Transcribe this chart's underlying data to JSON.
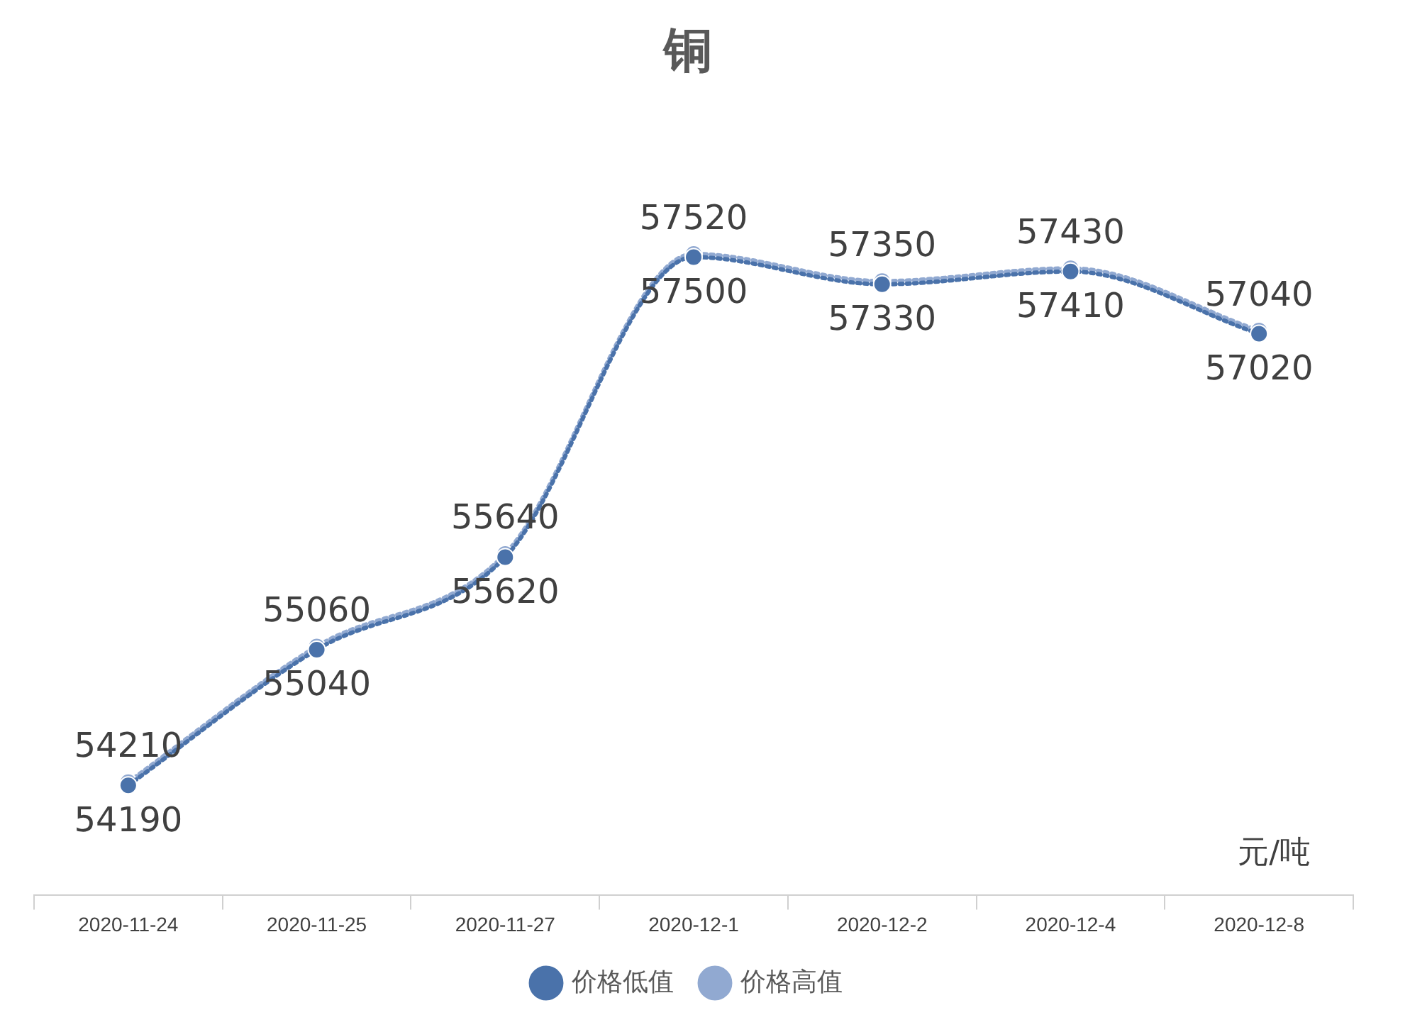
{
  "chart_data": {
    "type": "line",
    "title": "铜",
    "categories": [
      "2020-11-24",
      "2020-11-25",
      "2020-11-27",
      "2020-12-1",
      "2020-12-2",
      "2020-12-4",
      "2020-12-8"
    ],
    "series": [
      {
        "name": "价格低值",
        "color": "#4a72aa",
        "values": [
          54190,
          55040,
          55620,
          57500,
          57330,
          57410,
          57020
        ]
      },
      {
        "name": "价格高值",
        "color": "#91a9d1",
        "values": [
          54210,
          55060,
          55640,
          57520,
          57350,
          57430,
          57040
        ]
      }
    ],
    "data_labels": true,
    "marker": "circle",
    "line_style": "dotted",
    "legend": "bottom",
    "grid": false,
    "annotations": [
      "元/吨"
    ]
  }
}
